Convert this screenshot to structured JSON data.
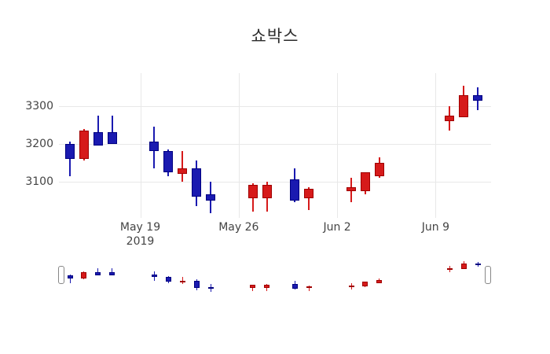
{
  "chart_data": {
    "type": "candlestick",
    "title": "쇼박스",
    "legend": "none",
    "grid": "on",
    "convention": "red = up (close > open), blue = down (close < open)",
    "colors": {
      "up_fill": "#d61a1a",
      "up_line": "#a00000",
      "down_fill": "#1a1ab0",
      "down_line": "#000080",
      "grid": "#e8e8e8",
      "tick_text": "#444444",
      "title_text": "#2b2b2b"
    },
    "x_axis": {
      "type": "date",
      "ticks": [
        {
          "label": "May 19",
          "sublabel": "2019",
          "day": 5
        },
        {
          "label": "May 26",
          "sublabel": "",
          "day": 12
        },
        {
          "label": "Jun 2",
          "sublabel": "",
          "day": 19
        },
        {
          "label": "Jun 9",
          "sublabel": "",
          "day": 26
        }
      ]
    },
    "y_axis": {
      "ticks": [
        3300,
        3200,
        3100
      ],
      "range_hint": [
        3000,
        3400
      ]
    },
    "rangeslider": {
      "visible": true,
      "handles": [
        "left",
        "right"
      ]
    },
    "candles": [
      {
        "date": "May 14",
        "day": 0,
        "open": 3200,
        "high": 3205,
        "low": 3115,
        "close": 3160
      },
      {
        "date": "May 15",
        "day": 1,
        "open": 3160,
        "high": 3240,
        "low": 3155,
        "close": 3235
      },
      {
        "date": "May 16",
        "day": 2,
        "open": 3230,
        "high": 3275,
        "low": 3195,
        "close": 3195
      },
      {
        "date": "May 17",
        "day": 3,
        "open": 3230,
        "high": 3275,
        "low": 3200,
        "close": 3200
      },
      {
        "date": "May 20",
        "day": 6,
        "open": 3205,
        "high": 3245,
        "low": 3135,
        "close": 3180
      },
      {
        "date": "May 21",
        "day": 7,
        "open": 3180,
        "high": 3185,
        "low": 3115,
        "close": 3125
      },
      {
        "date": "May 22",
        "day": 8,
        "open": 3120,
        "high": 3180,
        "low": 3100,
        "close": 3135
      },
      {
        "date": "May 23",
        "day": 9,
        "open": 3135,
        "high": 3155,
        "low": 3035,
        "close": 3060
      },
      {
        "date": "May 24",
        "day": 10,
        "open": 3065,
        "high": 3100,
        "low": 3015,
        "close": 3050
      },
      {
        "date": "May 27",
        "day": 13,
        "open": 3055,
        "high": 3095,
        "low": 3020,
        "close": 3090
      },
      {
        "date": "May 28",
        "day": 14,
        "open": 3055,
        "high": 3100,
        "low": 3020,
        "close": 3090
      },
      {
        "date": "May 30",
        "day": 16,
        "open": 3105,
        "high": 3135,
        "low": 3045,
        "close": 3050
      },
      {
        "date": "May 31",
        "day": 17,
        "open": 3055,
        "high": 3085,
        "low": 3025,
        "close": 3080
      },
      {
        "date": "Jun 3",
        "day": 20,
        "open": 3075,
        "high": 3110,
        "low": 3045,
        "close": 3085
      },
      {
        "date": "Jun 4",
        "day": 21,
        "open": 3075,
        "high": 3125,
        "low": 3065,
        "close": 3125
      },
      {
        "date": "Jun 5",
        "day": 22,
        "open": 3115,
        "high": 3165,
        "low": 3110,
        "close": 3150
      },
      {
        "date": "Jun 10",
        "day": 27,
        "open": 3260,
        "high": 3300,
        "low": 3235,
        "close": 3275
      },
      {
        "date": "Jun 11",
        "day": 28,
        "open": 3270,
        "high": 3355,
        "low": 3270,
        "close": 3330
      },
      {
        "date": "Jun 12",
        "day": 29,
        "open": 3330,
        "high": 3350,
        "low": 3290,
        "close": 3315
      }
    ]
  }
}
